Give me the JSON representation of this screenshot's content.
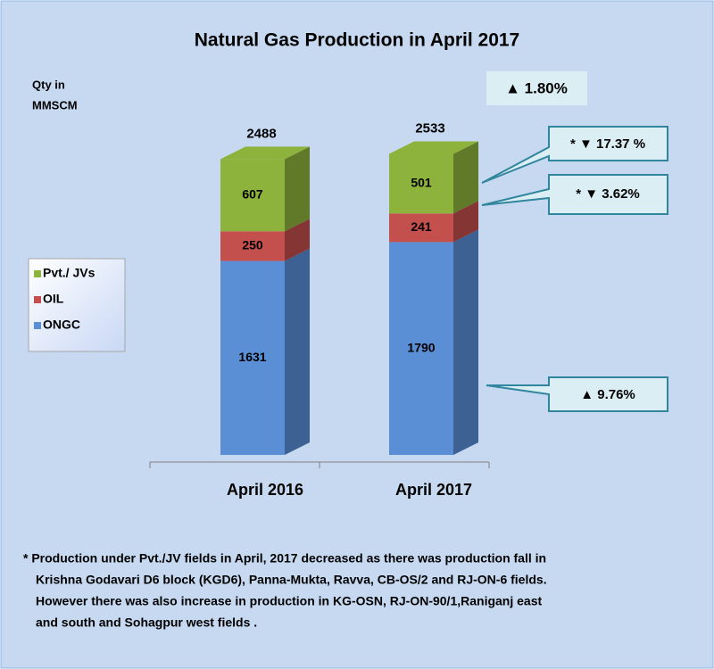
{
  "chart_data": {
    "type": "stacked-bar-3d",
    "title": "Natural Gas Production in April 2017",
    "y_label": [
      "Qty in",
      "MMSCM"
    ],
    "categories": [
      "April 2016",
      "April 2017"
    ],
    "series": [
      {
        "name": "ONGC",
        "color": "#5a8fd6",
        "values": [
          1631,
          1790
        ]
      },
      {
        "name": "OIL",
        "color": "#c4504d",
        "values": [
          250,
          241
        ]
      },
      {
        "name": "Pvt./ JVs",
        "color": "#8db33c",
        "values": [
          607,
          501
        ]
      }
    ],
    "totals": [
      2488,
      2533
    ],
    "annotations": [
      "▲ 1.80%",
      "* ▼ 17.37 %",
      "* ▼ 3.62%",
      "▲ 9.76%"
    ],
    "footnote": [
      "* Production under Pvt./JV fields in April, 2017  decreased  as there was production fall in",
      "Krishna Godavari D6 block (KGD6),  Panna-Mukta,  Ravva, CB-OS/2 and RJ-ON-6 fields.",
      "However there was also increase in production in KG-OSN, RJ-ON-90/1,Raniganj east",
      "and south and Sohagpur west fields ."
    ]
  }
}
